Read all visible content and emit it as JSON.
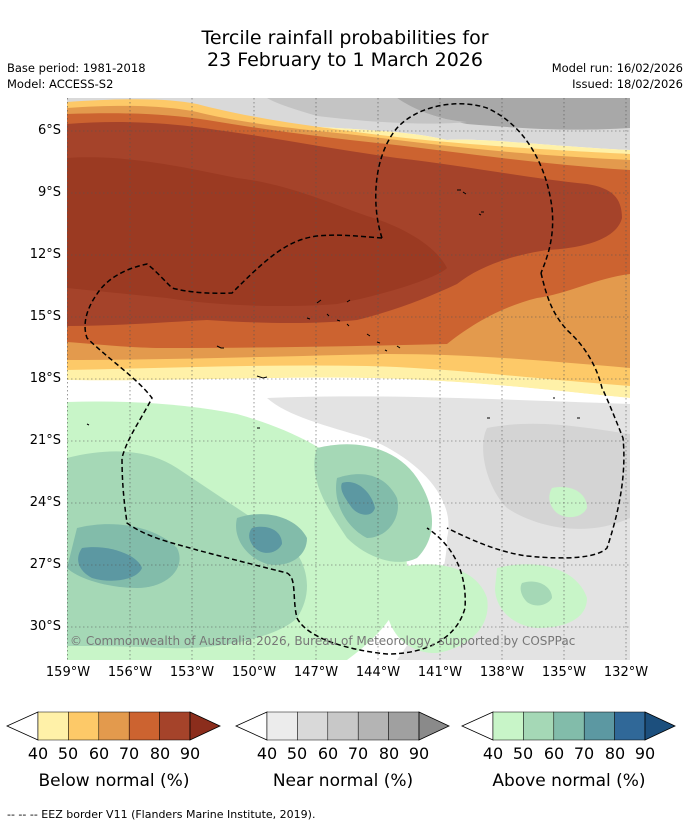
{
  "title_line1": "Tercile rainfall probabilities for",
  "title_line2": "23 February to 1 March 2026",
  "base_period": "Base period: 1981-2018",
  "model": "Model: ACCESS-S2",
  "model_run": "Model run: 16/02/2026",
  "issued": "Issued: 18/02/2026",
  "lat_labels": [
    "6°S",
    "9°S",
    "12°S",
    "15°S",
    "18°S",
    "21°S",
    "24°S",
    "27°S",
    "30°S"
  ],
  "lon_labels": [
    "159°W",
    "156°W",
    "153°W",
    "150°W",
    "147°W",
    "144°W",
    "141°W",
    "138°W",
    "135°W",
    "132°W"
  ],
  "copyright": "© Commonwealth of Australia 2026, Bureau of Meteorology, supported by COSPPac",
  "colorbars": [
    {
      "title": "Below normal (%)",
      "labels": [
        "40",
        "50",
        "60",
        "70",
        "80",
        "90"
      ],
      "colors": [
        "#fff1a8",
        "#fdc968",
        "#e39a4d",
        "#cc6330",
        "#a5432a",
        "#8b2d1c"
      ]
    },
    {
      "title": "Near normal (%)",
      "labels": [
        "40",
        "50",
        "60",
        "70",
        "80",
        "90"
      ],
      "colors": [
        "#ececec",
        "#d9d9d9",
        "#c8c8c8",
        "#b4b4b4",
        "#a0a0a0",
        "#8a8a8a"
      ]
    },
    {
      "title": "Above normal (%)",
      "labels": [
        "40",
        "50",
        "60",
        "70",
        "80",
        "90"
      ],
      "colors": [
        "#c8f5c8",
        "#a5d8b6",
        "#82bcaa",
        "#5c98a2",
        "#306898",
        "#1c4f7d"
      ]
    }
  ],
  "footer": "--  --  -- EEZ border V11 (Flanders Marine Institute, 2019)."
}
